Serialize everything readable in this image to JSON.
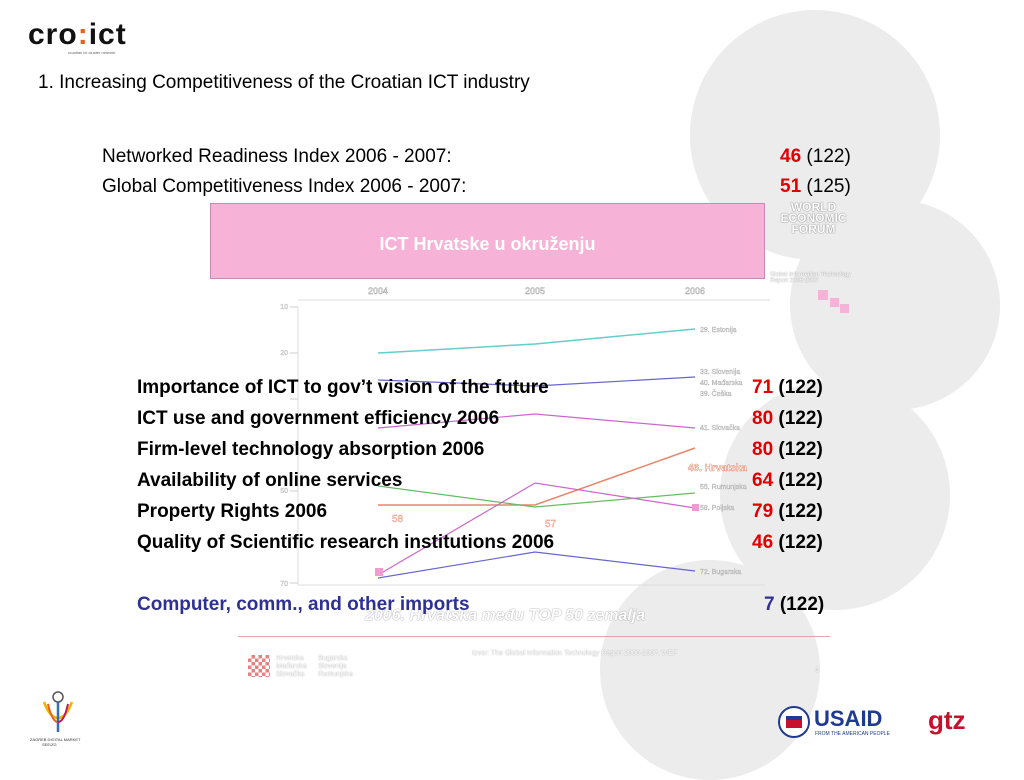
{
  "logo": {
    "brand_left": "cro",
    "brand_dot": ":",
    "brand_right": "ict",
    "sub": "croatian ict cluster network"
  },
  "heading": "1. Increasing Competitiveness of the Croatian ICT industry",
  "indices": [
    {
      "label": "Networked Readiness Index 2006 - 2007:",
      "rank": "46",
      "total": "(122)"
    },
    {
      "label": "Global Competitiveness Index 2006 - 2007:",
      "rank": "51",
      "total": "(125)"
    }
  ],
  "embedded_slide": {
    "title": "ICT Hrvatske u okruženju",
    "wef": "WORLD ECONOMIC FORUM",
    "wef_sub": "Global Information Technology Report 2006-2007",
    "years": [
      "2004",
      "2005",
      "2006"
    ],
    "y_ticks": [
      "10",
      "20",
      "30",
      "40",
      "50",
      "60",
      "70"
    ],
    "series_labels": [
      "29. Estonija",
      "33. Slovenija",
      "40. Mađarska",
      "39. Češka",
      "41. Slovačka",
      "46. Hrvatska",
      "55. Rumunjska",
      "58. Poljska",
      "72. Bugarska"
    ],
    "ghost_values": [
      "58",
      "57"
    ],
    "footer": "2006. Hrvatska među TOP 50 zemalja",
    "source": "Izvor: The Global Information Technology Report 2006-2007, WEF",
    "page": "6",
    "legend": [
      "Hrvatska",
      "Mađarska",
      "Slovačka",
      "Bugarska",
      "Slovenija",
      "Rumunjska",
      "Estonija",
      "Češka",
      "Poljska"
    ],
    "colors": {
      "Estonija": "#66cccc",
      "Slovenija": "#6666cc",
      "Hrvatska": "#e8866a",
      "Rumunjska": "#66bb66",
      "Poljska": "#cc66cc",
      "Bugarska": "#6666cc"
    }
  },
  "indicators": [
    {
      "label": "Importance of ICT to gov’t vision of the future",
      "rank": "71",
      "total": "(122)"
    },
    {
      "label": "ICT use and government efficiency 2006",
      "rank": "80",
      "total": "(122)"
    },
    {
      "label": "Firm-level technology absorption 2006",
      "rank": "80",
      "total": "(122)"
    },
    {
      "label": "Availability of online services",
      "rank": "64",
      "total": "(122)"
    },
    {
      "label": "Property Rights 2006",
      "rank": "79",
      "total": "(122)"
    },
    {
      "label": "Quality of Scientific research institutions 2006",
      "rank": "46",
      "total": "(122)"
    }
  ],
  "imports": {
    "label": "Computer, comm., and other imports",
    "rank": "7",
    "total": "(122)"
  },
  "bottom_left_logo": {
    "line1": "ZAGREB DIGITAL MARKET",
    "line2": "SEE/ZG"
  },
  "usaid": {
    "name": "USAID",
    "tagline": "FROM THE AMERICAN PEOPLE"
  },
  "gtz": "gtz",
  "accent_red": "#e00000",
  "accent_blue": "#2e3192"
}
